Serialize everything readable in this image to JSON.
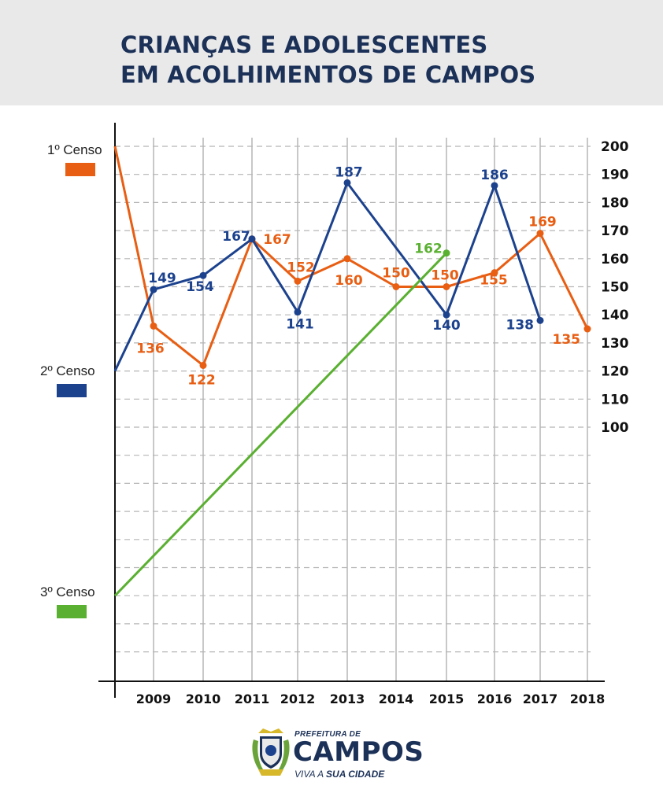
{
  "header": {
    "title_line1": "CRIANÇAS E ADOLESCENTES",
    "title_line2": "EM ACOLHIMENTOS DE CAMPOS"
  },
  "colors": {
    "censo1": "#e85e13",
    "censo2": "#1c428e",
    "censo3": "#5ab031",
    "title": "#1c3158",
    "grid": "#b5b5b5",
    "header_bg": "#e9e9e9"
  },
  "legend": [
    {
      "label": "1º Censo",
      "color": "#e85e13"
    },
    {
      "label": "2º Censo",
      "color": "#1c428e"
    },
    {
      "label": "3º Censo",
      "color": "#5ab031"
    }
  ],
  "chart_data": {
    "type": "line",
    "title": "CRIANÇAS E ADOLESCENTES EM ACOLHIMENTOS DE CAMPOS",
    "categories": [
      "2009",
      "2010",
      "2011",
      "2012",
      "2013",
      "2014",
      "2015",
      "2016",
      "2017",
      "2018"
    ],
    "y_ticks": [
      200,
      190,
      180,
      170,
      160,
      150,
      140,
      130,
      120,
      110,
      100
    ],
    "ylim": [
      10,
      200
    ],
    "grid": true,
    "legend_position": "left",
    "series": [
      {
        "name": "1º Censo",
        "color": "#e85e13",
        "start_value": 200,
        "values": [
          136,
          122,
          167,
          152,
          160,
          150,
          150,
          155,
          169,
          135
        ]
      },
      {
        "name": "2º Censo",
        "color": "#1c428e",
        "start_value": 120,
        "values": [
          149,
          154,
          167,
          141,
          187,
          null,
          140,
          186,
          138,
          null
        ]
      },
      {
        "name": "3º Censo",
        "color": "#5ab031",
        "start_value": 40,
        "values": [
          null,
          null,
          null,
          null,
          null,
          null,
          162,
          null,
          null,
          null
        ]
      }
    ]
  },
  "logo": {
    "top_text": "PREFEITURA DE",
    "main_text": "CAMPOS",
    "sub_text_a": "VIVA A ",
    "sub_text_b": "SUA CIDADE",
    "emblem": "city-coat-of-arms"
  }
}
